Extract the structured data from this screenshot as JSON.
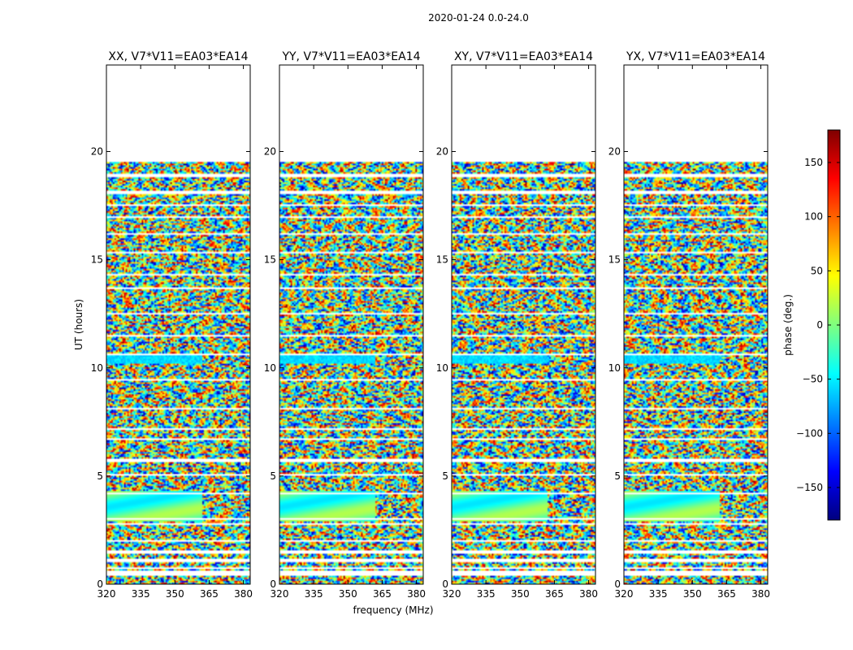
{
  "figure": {
    "suptitle": "2020-01-24 0.0-24.0"
  },
  "chart_data": [
    {
      "type": "heatmap",
      "title": "XX, V7*V11=EA03*EA14",
      "pol": "XX",
      "xlabel": "frequency (MHz)",
      "ylabel": "UT (hours)",
      "xlim": [
        320,
        383
      ],
      "ylim": [
        0,
        24
      ],
      "xticks": [
        320,
        335,
        350,
        365,
        380
      ],
      "yticks": [
        0,
        5,
        10,
        15,
        20
      ],
      "data_rows_hours": [
        [
          0.0,
          0.4
        ],
        [
          0.6,
          5.7
        ],
        [
          5.8,
          10.6
        ],
        [
          10.7,
          19.6
        ]
      ],
      "flagged_rows_hours": [
        0.45,
        0.75,
        1.1,
        1.5,
        2.0,
        2.8,
        3.0,
        4.2,
        5.05,
        5.7,
        6.7,
        7.2,
        8.1,
        9.45,
        10.6,
        11.5,
        12.5,
        13.7,
        14.3,
        15.3,
        16.2,
        17.0,
        17.5,
        18.1,
        18.9,
        19.6
      ]
    },
    {
      "type": "heatmap",
      "title": "YY, V7*V11=EA03*EA14",
      "pol": "YY",
      "xlabel": "",
      "ylabel": "",
      "xlim": [
        320,
        383
      ],
      "ylim": [
        0,
        24
      ],
      "xticks": [
        320,
        335,
        350,
        365,
        380
      ],
      "yticks": [
        0,
        5,
        10,
        15,
        20
      ],
      "data_rows_hours": [
        [
          0.0,
          0.4
        ],
        [
          0.6,
          5.7
        ],
        [
          5.8,
          10.6
        ],
        [
          10.7,
          19.6
        ]
      ],
      "flagged_rows_hours": [
        0.45,
        0.75,
        1.1,
        1.5,
        2.0,
        2.8,
        3.0,
        4.2,
        5.05,
        5.7,
        6.7,
        7.2,
        8.1,
        9.45,
        10.6,
        11.5,
        12.5,
        13.7,
        14.3,
        15.3,
        16.2,
        17.0,
        17.5,
        18.1,
        18.9,
        19.6
      ]
    },
    {
      "type": "heatmap",
      "title": "XY, V7*V11=EA03*EA14",
      "pol": "XY",
      "xlabel": "",
      "ylabel": "",
      "xlim": [
        320,
        383
      ],
      "ylim": [
        0,
        24
      ],
      "xticks": [
        320,
        335,
        350,
        365,
        380
      ],
      "yticks": [
        0,
        5,
        10,
        15,
        20
      ],
      "data_rows_hours": [
        [
          0.0,
          0.4
        ],
        [
          0.6,
          5.7
        ],
        [
          5.8,
          10.6
        ],
        [
          10.7,
          19.6
        ]
      ],
      "flagged_rows_hours": [
        0.45,
        0.75,
        1.1,
        1.5,
        2.0,
        2.8,
        3.0,
        4.2,
        5.05,
        5.7,
        6.7,
        7.2,
        8.1,
        9.45,
        10.6,
        11.5,
        12.5,
        13.7,
        14.3,
        15.3,
        16.2,
        17.0,
        17.5,
        18.1,
        18.9,
        19.6
      ]
    },
    {
      "type": "heatmap",
      "title": "YX, V7*V11=EA03*EA14",
      "pol": "YX",
      "xlabel": "",
      "ylabel": "",
      "xlim": [
        320,
        383
      ],
      "ylim": [
        0,
        24
      ],
      "xticks": [
        320,
        335,
        350,
        365,
        380
      ],
      "yticks": [
        0,
        5,
        10,
        15,
        20
      ],
      "data_rows_hours": [
        [
          0.0,
          0.4
        ],
        [
          0.6,
          5.7
        ],
        [
          5.8,
          10.6
        ],
        [
          10.7,
          19.6
        ]
      ],
      "flagged_rows_hours": [
        0.45,
        0.75,
        1.1,
        1.5,
        2.0,
        2.8,
        3.0,
        4.2,
        5.05,
        5.7,
        6.7,
        7.2,
        8.1,
        9.45,
        10.6,
        11.5,
        12.5,
        13.7,
        14.3,
        15.3,
        16.2,
        17.0,
        17.5,
        18.1,
        18.9,
        19.6
      ]
    }
  ],
  "colorbar": {
    "label": "phase (deg.)",
    "vmin": -180,
    "vmax": 180,
    "ticks": [
      -150,
      -100,
      -50,
      0,
      50,
      100,
      150
    ],
    "tick_labels": [
      "−150",
      "−100",
      "−50",
      "0",
      "50",
      "100",
      "150"
    ],
    "colormap": "jet",
    "colors": [
      "#00007f",
      "#0000ff",
      "#007fff",
      "#00ffff",
      "#7fff7f",
      "#ffff00",
      "#ff7f00",
      "#ff0000",
      "#7f0000"
    ]
  }
}
